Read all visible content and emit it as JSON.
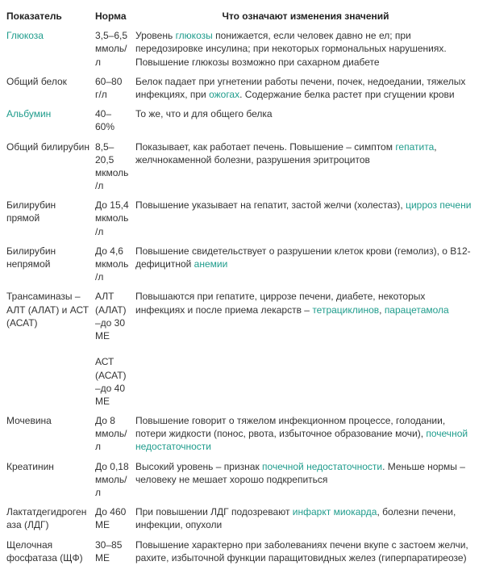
{
  "headers": {
    "indicator": "Показатель",
    "norm": "Норма",
    "meaning": "Что означают изменения значений"
  },
  "link_color": "#1f9c8c",
  "text_color": "#333333",
  "rows": [
    {
      "indicator_parts": [
        {
          "t": "Глюкоза",
          "link": true
        }
      ],
      "norm": "3,5–6,5 ммоль/л",
      "meaning_parts": [
        {
          "t": "Уровень "
        },
        {
          "t": "глюкозы",
          "link": true
        },
        {
          "t": " понижается, если человек давно не ел; при передозировке инсулина; при некоторых гормональных нарушениях. Повышение глюкозы возможно при сахарном диабете"
        }
      ]
    },
    {
      "indicator_parts": [
        {
          "t": "Общий белок"
        }
      ],
      "norm": "60–80 г/л",
      "meaning_parts": [
        {
          "t": "Белок падает при угнетении работы печени, почек, недоедании, тяжелых инфекциях, при "
        },
        {
          "t": "ожогах",
          "link": true
        },
        {
          "t": ". Содержание белка растет при сгущении крови"
        }
      ]
    },
    {
      "indicator_parts": [
        {
          "t": "Альбумин",
          "link": true
        }
      ],
      "norm": "40–60%",
      "meaning_parts": [
        {
          "t": "То же, что и для общего белка"
        }
      ]
    },
    {
      "indicator_parts": [
        {
          "t": "Общий билирубин"
        }
      ],
      "norm": "8,5–20,5 мкмоль/л",
      "meaning_parts": [
        {
          "t": "Показывает, как работает печень. Повышение – симптом "
        },
        {
          "t": "гепатита",
          "link": true
        },
        {
          "t": ", желчнокаменной болезни, разрушения эритроцитов"
        }
      ]
    },
    {
      "indicator_parts": [
        {
          "t": "Билирубин прямой"
        }
      ],
      "norm": "До 15,4 мкмоль/л",
      "meaning_parts": [
        {
          "t": "Повышение указывает на гепатит, застой желчи (холестаз), "
        },
        {
          "t": "цирроз печени",
          "link": true
        }
      ]
    },
    {
      "indicator_parts": [
        {
          "t": "Билирубин непрямой"
        }
      ],
      "norm": "До 4,6 мкмоль/л",
      "meaning_parts": [
        {
          "t": "Повышение свидетельствует о разрушении клеток крови (гемолиз), о В12-дефицитной "
        },
        {
          "t": "анемии",
          "link": true
        }
      ]
    },
    {
      "indicator_parts": [
        {
          "t": "Трансаминазы – АЛТ (АЛАТ) и АСТ (АСАТ)"
        }
      ],
      "norm": "АЛТ (АЛАТ) –до 30 МЕ\n\nАСТ (АСАТ) –до 40 МЕ",
      "meaning_parts": [
        {
          "t": "Повышаются при гепатите, циррозе печени, диабете, некоторых инфекциях и после приема лекарств – "
        },
        {
          "t": "тетрациклинов",
          "link": true
        },
        {
          "t": ", "
        },
        {
          "t": "парацетамола",
          "link": true
        }
      ]
    },
    {
      "indicator_parts": [
        {
          "t": "Мочевина"
        }
      ],
      "norm": "До 8 ммоль/л",
      "meaning_parts": [
        {
          "t": "Повышение говорит о тяжелом инфекционном процессе, голодании, потери жидкости (понос, рвота, избыточное образование мочи), "
        },
        {
          "t": "почечной недостаточности",
          "link": true
        }
      ]
    },
    {
      "indicator_parts": [
        {
          "t": "Креатинин"
        }
      ],
      "norm": "До 0,18 ммоль/л",
      "meaning_parts": [
        {
          "t": "Высокий уровень – признак "
        },
        {
          "t": "почечной недостаточности",
          "link": true
        },
        {
          "t": ". Меньше нормы – человеку не мешает хорошо подкрепиться"
        }
      ]
    },
    {
      "indicator_parts": [
        {
          "t": "Лактатдегидрогеназа (ЛДГ)"
        }
      ],
      "norm": "До 460 МЕ",
      "meaning_parts": [
        {
          "t": "При повышении ЛДГ подозревают "
        },
        {
          "t": "инфаркт миокарда",
          "link": true
        },
        {
          "t": ", болезни печени, инфекции, опухоли"
        }
      ]
    },
    {
      "indicator_parts": [
        {
          "t": "Щелочная фосфатаза (ЩФ)"
        }
      ],
      "norm": "30–85 МЕ",
      "meaning_parts": [
        {
          "t": "Повышение характерно при заболеваниях печени вкупе с застоем желчи, рахите, избыточной функции паращитовидных желез (гиперпаратиреозе)"
        }
      ]
    }
  ]
}
